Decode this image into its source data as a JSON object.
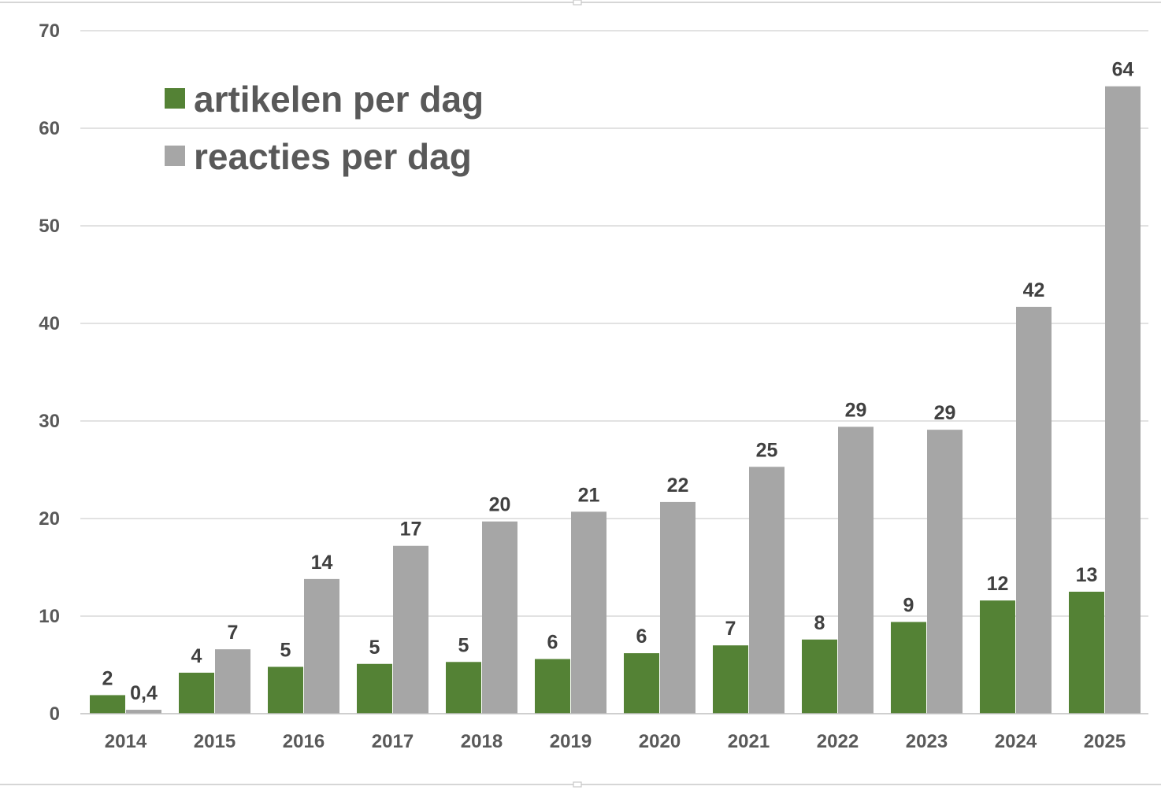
{
  "colors": {
    "artikelen": "#548235",
    "reacties": "#a6a6a6"
  },
  "chart_data": {
    "type": "bar",
    "title": "",
    "xlabel": "",
    "ylabel": "",
    "ylim": [
      0,
      70
    ],
    "yticks": [
      "0",
      "10",
      "20",
      "30",
      "40",
      "50",
      "60",
      "70"
    ],
    "grid": true,
    "legend_position": "top-left",
    "categories": [
      "2014",
      "2015",
      "2016",
      "2017",
      "2018",
      "2019",
      "2020",
      "2021",
      "2022",
      "2023",
      "2024",
      "2025"
    ],
    "series": [
      {
        "name": "artikelen per dag",
        "color": "#548235",
        "values": [
          1.9,
          4.2,
          4.8,
          5.1,
          5.3,
          5.6,
          6.2,
          7.0,
          7.6,
          9.4,
          11.6,
          12.5
        ],
        "labels": [
          "2",
          "4",
          "5",
          "5",
          "5",
          "6",
          "6",
          "7",
          "8",
          "9",
          "12",
          "13"
        ]
      },
      {
        "name": "reacties per dag",
        "color": "#a6a6a6",
        "values": [
          0.4,
          6.6,
          13.8,
          17.2,
          19.7,
          20.7,
          21.7,
          25.3,
          29.4,
          29.1,
          41.7,
          64.3
        ],
        "labels": [
          "0,4",
          "7",
          "14",
          "17",
          "20",
          "21",
          "22",
          "25",
          "29",
          "29",
          "42",
          "64"
        ]
      }
    ]
  }
}
